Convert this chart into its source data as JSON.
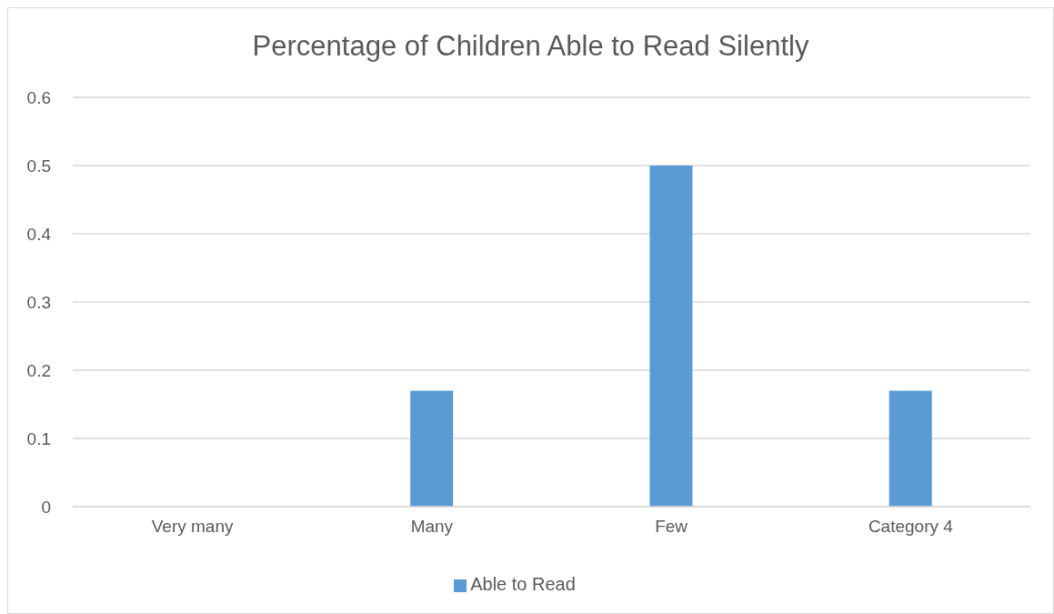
{
  "chart_data": {
    "type": "bar",
    "title": "Percentage of Children Able to Read Silently",
    "categories": [
      "Very many",
      "Many",
      "Few",
      "Category 4"
    ],
    "series": [
      {
        "name": "Able to Read",
        "color": "#5b9bd5",
        "values": [
          0,
          0.17,
          0.5,
          0.17
        ]
      }
    ],
    "ylim": [
      0,
      0.6
    ],
    "yticks": [
      0,
      0.1,
      0.2,
      0.3,
      0.4,
      0.5,
      0.6
    ],
    "grid": "y",
    "legend": "bottom"
  }
}
